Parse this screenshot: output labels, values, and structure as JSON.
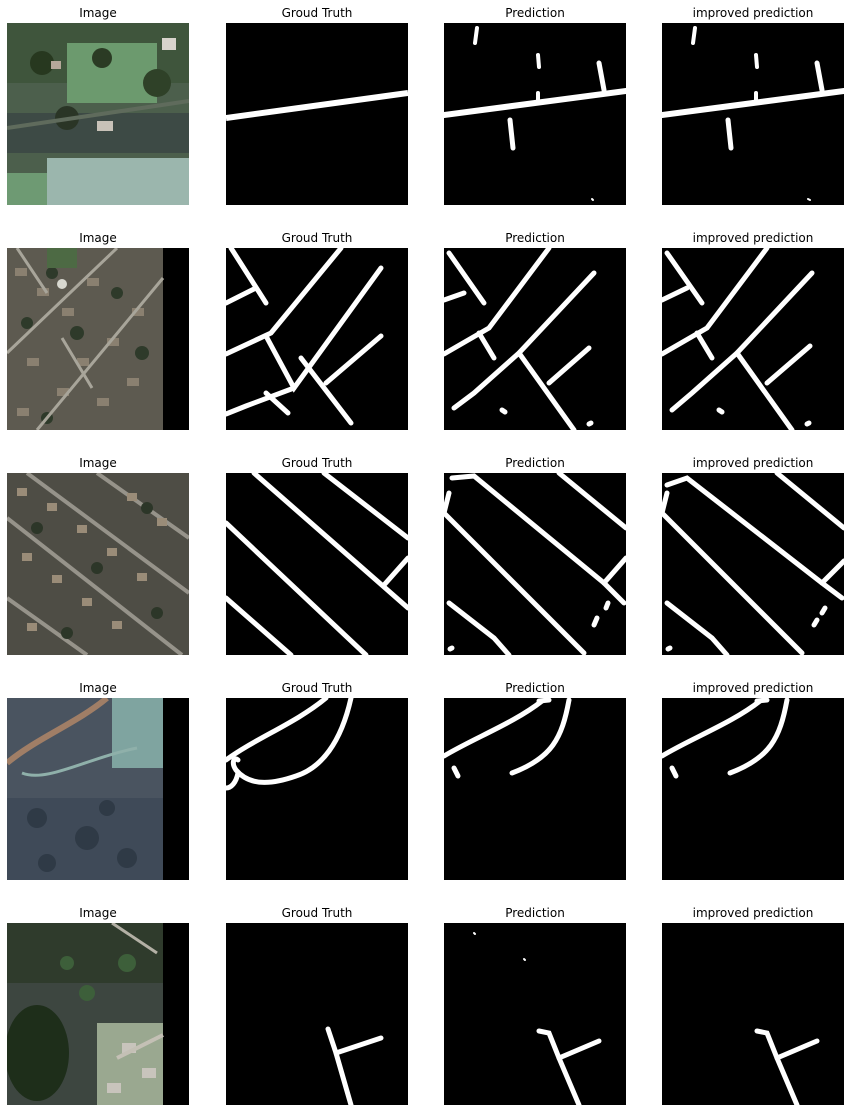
{
  "colors": {
    "background": "#ffffff",
    "mask_bg": "#000000",
    "road": "#ffffff"
  },
  "rows": [
    {
      "titles": [
        "Image",
        "Groud Truth",
        "Prediction",
        "improved prediction"
      ]
    },
    {
      "titles": [
        "Image",
        "Groud Truth",
        "Prediction",
        "improved prediction"
      ]
    },
    {
      "titles": [
        "Image",
        "Groud Truth",
        "Prediction",
        "improved prediction"
      ]
    },
    {
      "titles": [
        "Image",
        "Groud Truth",
        "Prediction",
        "improved prediction"
      ]
    },
    {
      "titles": [
        "Image",
        "Groud Truth",
        "Prediction",
        "improved prediction"
      ]
    }
  ]
}
